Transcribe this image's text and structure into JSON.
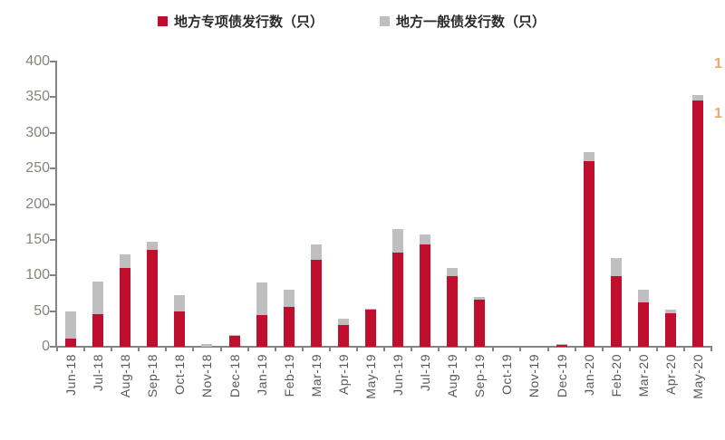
{
  "legend": [
    {
      "label": "地方专项债发行数（只）",
      "color": "#C00F2E"
    },
    {
      "label": "地方一般债发行数（只）",
      "color": "#BFBFBF"
    }
  ],
  "y_axis": {
    "tick_labels": [
      "400",
      "350",
      "300",
      "250",
      "200",
      "150",
      "100",
      "50",
      "0"
    ],
    "min": 0,
    "max": 400,
    "step": 50
  },
  "right_axis": {
    "visible_partial_labels": [
      "1",
      "1"
    ],
    "color": "#E8A96B"
  },
  "chart_data": {
    "type": "bar",
    "stacked": true,
    "grid": false,
    "legend_position": "top",
    "ylim": [
      0,
      400
    ],
    "categories": [
      "Jun-18",
      "Jul-18",
      "Aug-18",
      "Sep-18",
      "Oct-18",
      "Nov-18",
      "Dec-18",
      "Jan-19",
      "Feb-19",
      "Mar-19",
      "Apr-19",
      "May-19",
      "Jun-19",
      "Jul-19",
      "Aug-19",
      "Sep-19",
      "Oct-19",
      "Nov-19",
      "Dec-19",
      "Jan-20",
      "Feb-20",
      "Mar-20",
      "Apr-20",
      "May-20"
    ],
    "series": [
      {
        "name": "地方专项债发行数（只）",
        "color": "#C00F2E",
        "values": [
          12,
          46,
          110,
          136,
          50,
          0,
          15,
          45,
          56,
          122,
          30,
          52,
          132,
          144,
          99,
          66,
          0,
          0,
          3,
          260,
          99,
          62,
          47,
          345
        ]
      },
      {
        "name": "地方一般债发行数（只）",
        "color": "#BFBFBF",
        "values": [
          38,
          46,
          20,
          11,
          22,
          4,
          1,
          45,
          24,
          22,
          10,
          2,
          33,
          14,
          11,
          4,
          0,
          0,
          1,
          13,
          25,
          18,
          5,
          8
        ]
      }
    ]
  }
}
